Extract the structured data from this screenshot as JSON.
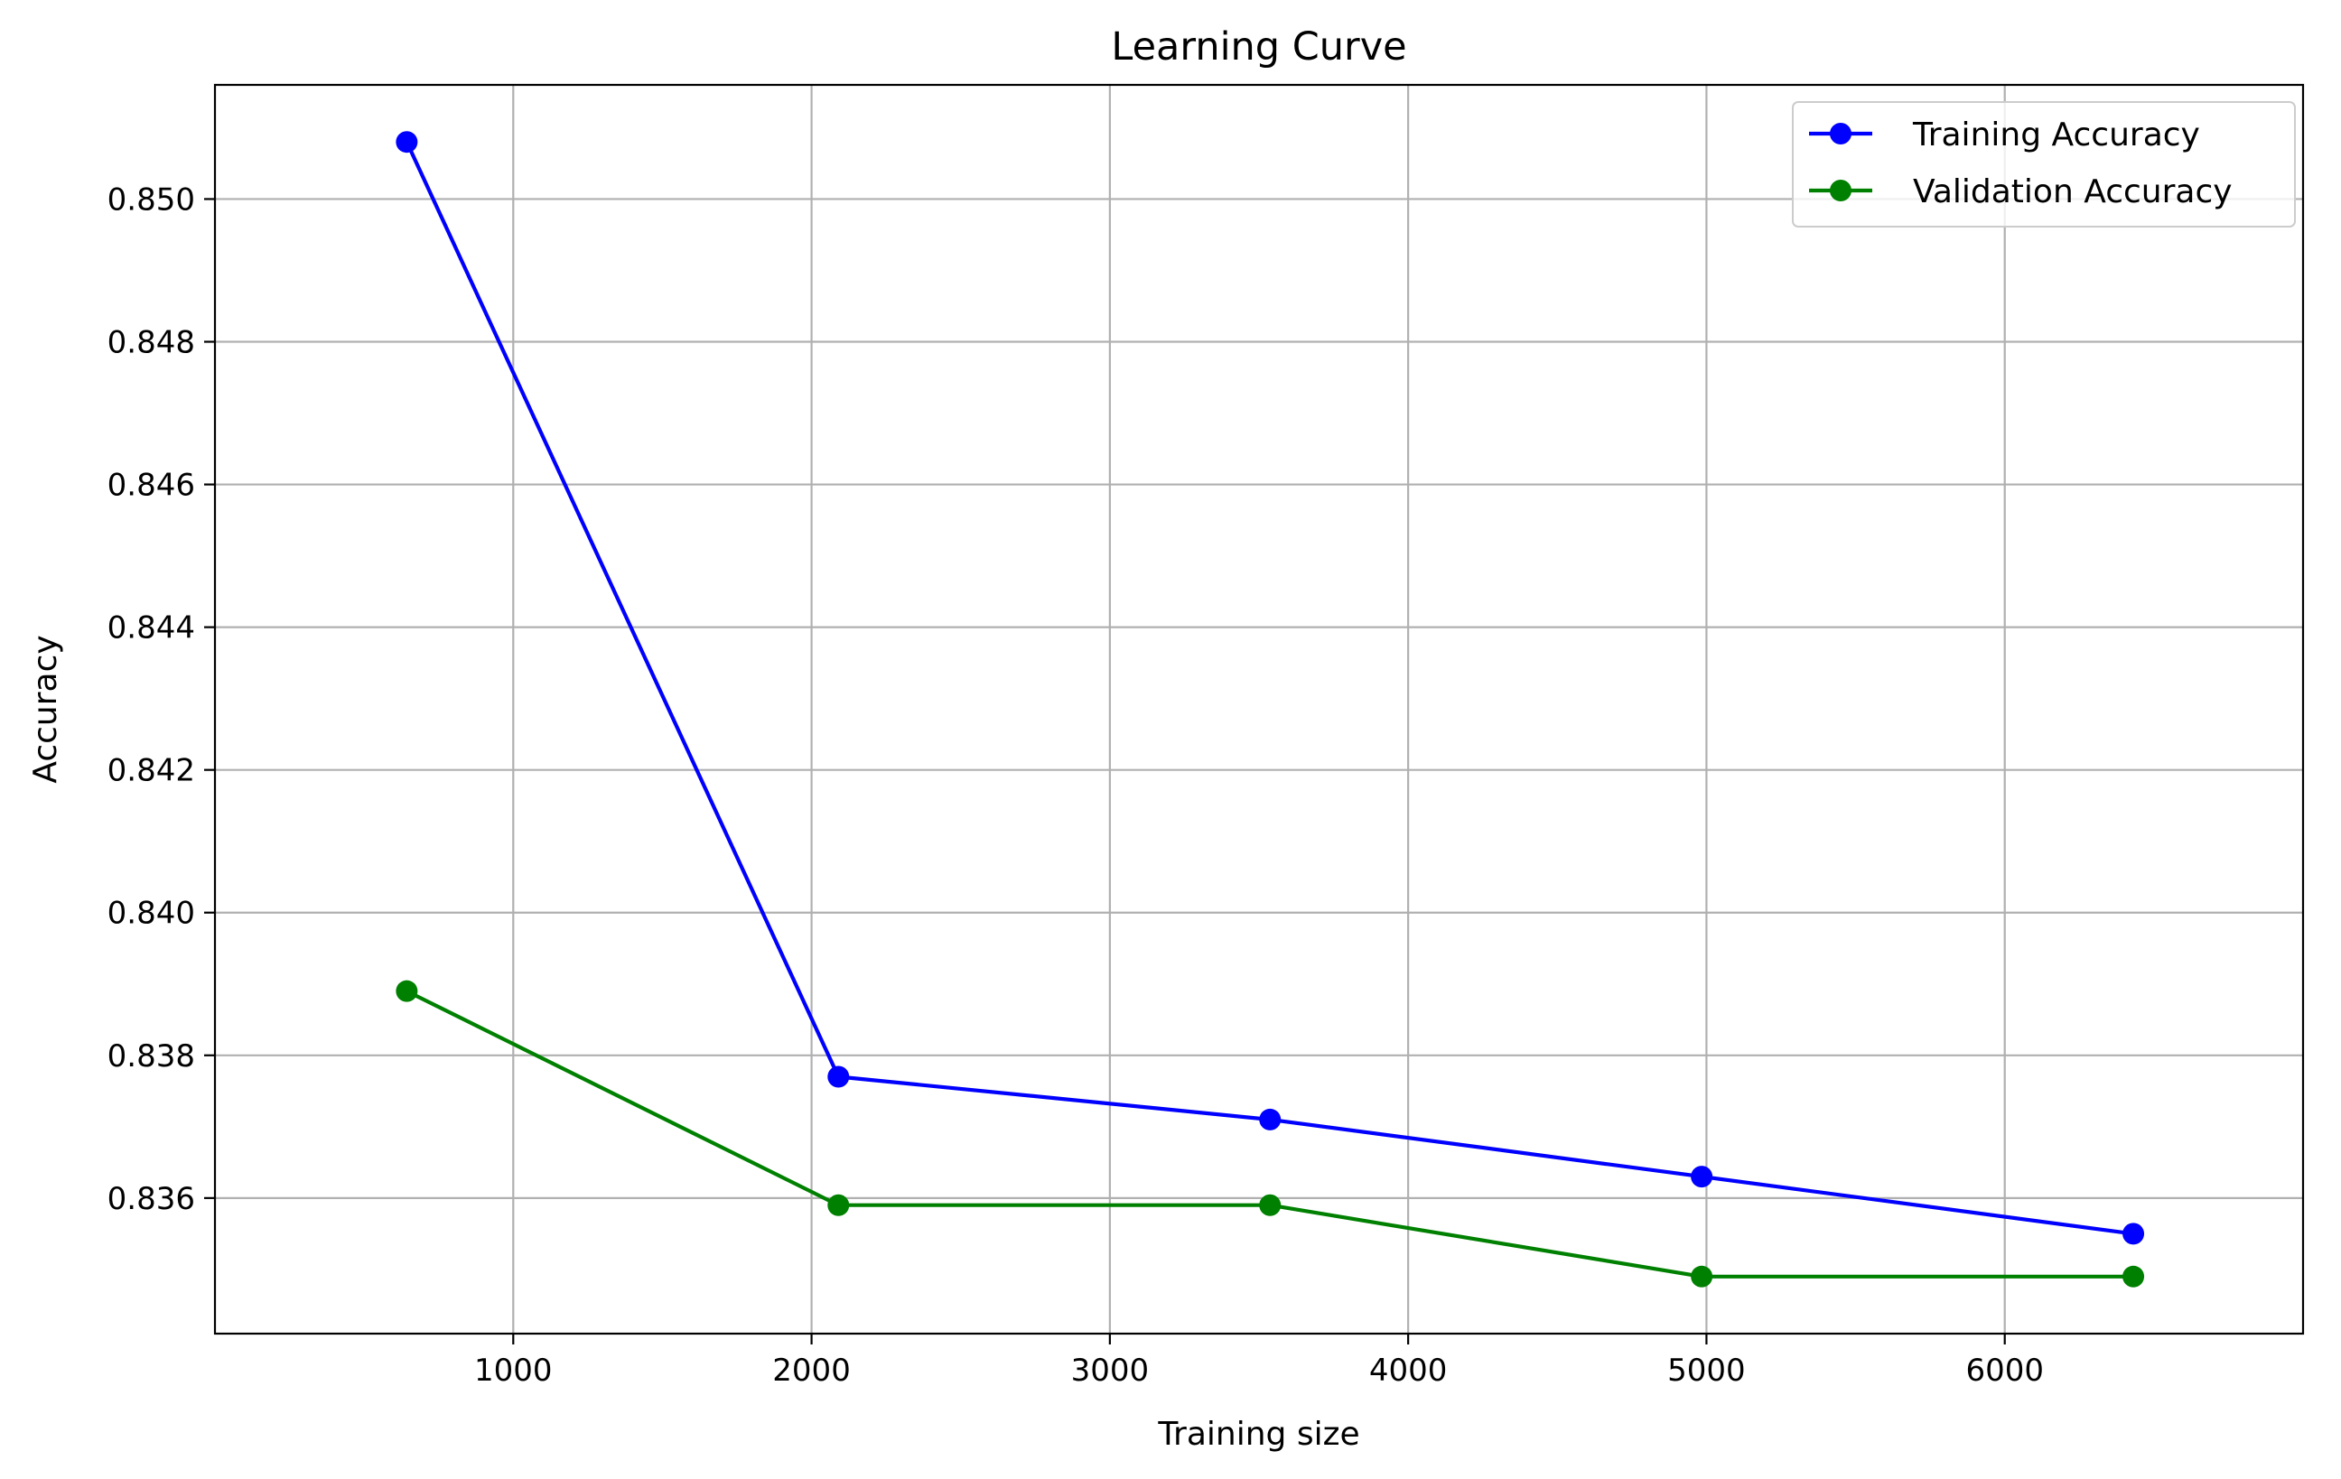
{
  "chart_data": {
    "type": "line",
    "title": "Learning Curve",
    "xlabel": "Training size",
    "ylabel": "Accuracy",
    "x": [
      643,
      2090,
      3537,
      4984,
      6431
    ],
    "series": [
      {
        "name": "Training Accuracy",
        "color": "#0000ff",
        "marker": "circle",
        "values": [
          0.8508,
          0.8377,
          0.8371,
          0.8363,
          0.8355
        ]
      },
      {
        "name": "Validation Accuracy",
        "color": "#008000",
        "marker": "circle",
        "values": [
          0.8389,
          0.8359,
          0.8359,
          0.8349,
          0.8349
        ]
      }
    ],
    "xlim": [
      0,
      7000
    ],
    "ylim": [
      0.8341,
      0.8516
    ],
    "xticks": [
      1000,
      2000,
      3000,
      4000,
      5000,
      6000
    ],
    "xtick_labels": [
      "1000",
      "2000",
      "3000",
      "4000",
      "5000",
      "6000"
    ],
    "yticks": [
      0.836,
      0.838,
      0.84,
      0.842,
      0.844,
      0.846,
      0.848,
      0.85
    ],
    "ytick_labels": [
      "0.836",
      "0.838",
      "0.840",
      "0.842",
      "0.844",
      "0.846",
      "0.848",
      "0.850"
    ],
    "grid": true,
    "grid_color": "#b0b0b0",
    "legend_position": "top-right"
  }
}
